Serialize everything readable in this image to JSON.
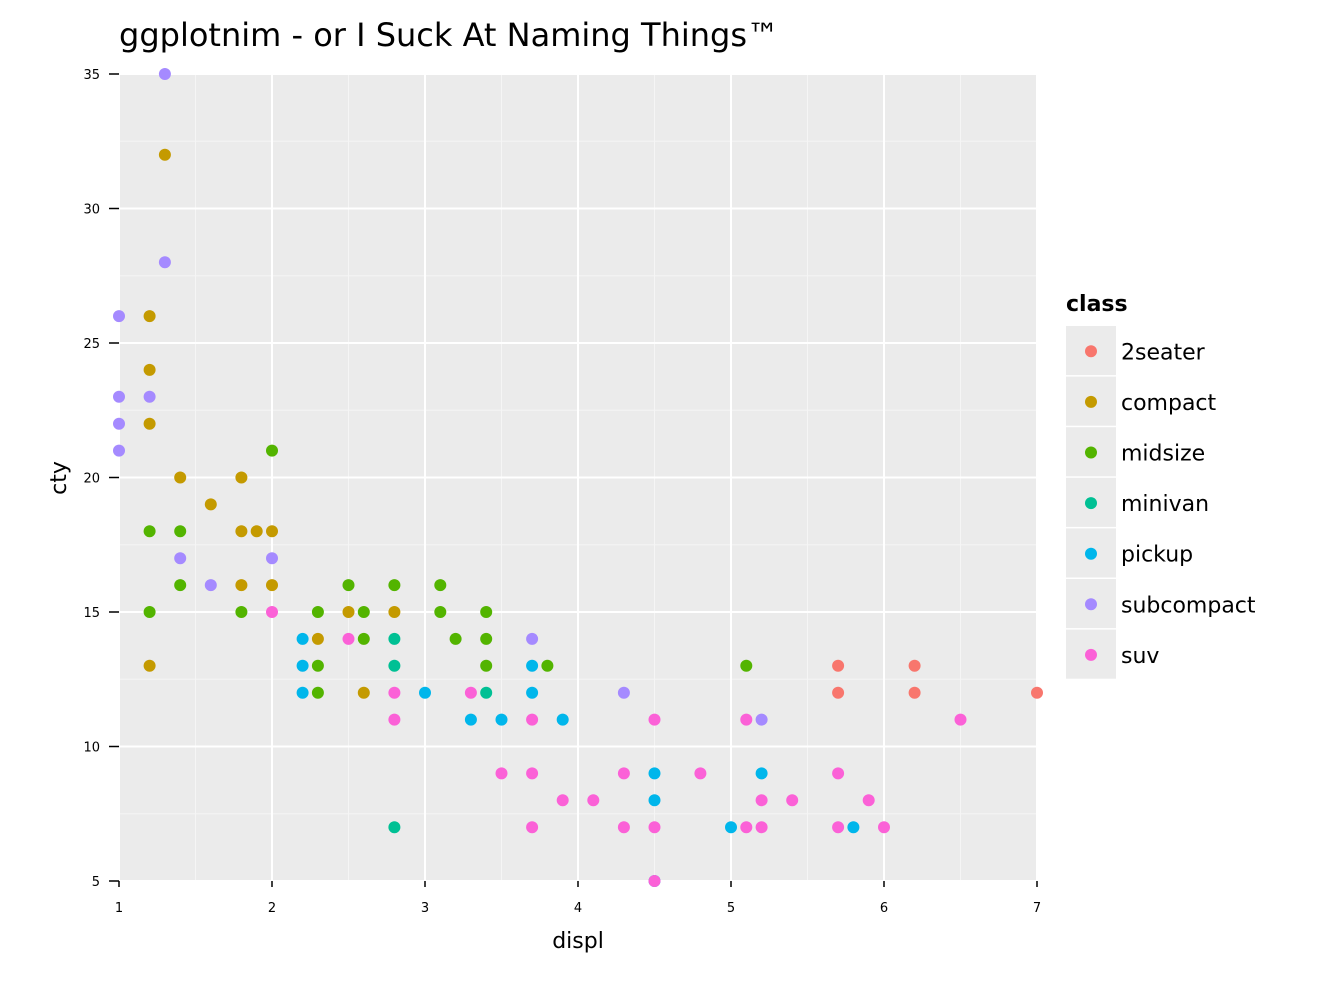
{
  "chart_data": {
    "type": "scatter",
    "title": "ggplotnim - or I Suck At Naming Things™",
    "xlabel": "displ",
    "ylabel": "cty",
    "xlim": [
      1,
      7
    ],
    "ylim": [
      5,
      35
    ],
    "xticks": [
      1,
      2,
      3,
      4,
      5,
      6,
      7
    ],
    "yticks": [
      5,
      10,
      15,
      20,
      25,
      30,
      35
    ],
    "grid": true,
    "legend": {
      "title": "class",
      "position": "right"
    },
    "series": [
      {
        "name": "2seater",
        "color": "#F8766D",
        "points": [
          [
            5.7,
            12
          ],
          [
            5.7,
            13
          ],
          [
            6.2,
            12
          ],
          [
            6.2,
            13
          ],
          [
            7.0,
            12
          ]
        ]
      },
      {
        "name": "compact",
        "color": "#C49A00",
        "points": [
          [
            1.2,
            13
          ],
          [
            1.2,
            22
          ],
          [
            1.2,
            24
          ],
          [
            1.2,
            26
          ],
          [
            1.3,
            32
          ],
          [
            1.4,
            20
          ],
          [
            1.6,
            19
          ],
          [
            1.8,
            16
          ],
          [
            1.8,
            18
          ],
          [
            1.8,
            20
          ],
          [
            1.9,
            18
          ],
          [
            2.0,
            16
          ],
          [
            2.0,
            18
          ],
          [
            2.3,
            14
          ],
          [
            2.5,
            15
          ],
          [
            2.6,
            12
          ],
          [
            2.8,
            15
          ]
        ]
      },
      {
        "name": "midsize",
        "color": "#53B400",
        "points": [
          [
            1.2,
            15
          ],
          [
            1.2,
            18
          ],
          [
            1.4,
            16
          ],
          [
            1.4,
            18
          ],
          [
            1.8,
            15
          ],
          [
            2.0,
            21
          ],
          [
            2.3,
            12
          ],
          [
            2.3,
            13
          ],
          [
            2.3,
            15
          ],
          [
            2.5,
            16
          ],
          [
            2.6,
            14
          ],
          [
            2.6,
            15
          ],
          [
            2.8,
            16
          ],
          [
            3.1,
            15
          ],
          [
            3.1,
            16
          ],
          [
            3.2,
            14
          ],
          [
            3.4,
            13
          ],
          [
            3.4,
            14
          ],
          [
            3.4,
            15
          ],
          [
            3.8,
            13
          ],
          [
            5.1,
            13
          ]
        ]
      },
      {
        "name": "minivan",
        "color": "#00C094",
        "points": [
          [
            2.8,
            7
          ],
          [
            2.8,
            13
          ],
          [
            2.8,
            14
          ],
          [
            3.4,
            12
          ]
        ]
      },
      {
        "name": "pickup",
        "color": "#00B6EB",
        "points": [
          [
            2.2,
            12
          ],
          [
            2.2,
            13
          ],
          [
            2.2,
            14
          ],
          [
            3.0,
            12
          ],
          [
            3.3,
            11
          ],
          [
            3.5,
            11
          ],
          [
            3.7,
            12
          ],
          [
            3.7,
            13
          ],
          [
            3.9,
            11
          ],
          [
            4.5,
            8
          ],
          [
            4.5,
            9
          ],
          [
            4.5,
            5
          ],
          [
            5.0,
            7
          ],
          [
            5.2,
            9
          ],
          [
            5.8,
            7
          ]
        ]
      },
      {
        "name": "subcompact",
        "color": "#A58AFF",
        "points": [
          [
            1.0,
            21
          ],
          [
            1.0,
            22
          ],
          [
            1.0,
            23
          ],
          [
            1.0,
            26
          ],
          [
            1.2,
            23
          ],
          [
            1.3,
            28
          ],
          [
            1.3,
            35
          ],
          [
            1.4,
            17
          ],
          [
            1.6,
            16
          ],
          [
            2.0,
            17
          ],
          [
            3.7,
            14
          ],
          [
            4.3,
            12
          ],
          [
            5.2,
            11
          ]
        ]
      },
      {
        "name": "suv",
        "color": "#FB61D7",
        "points": [
          [
            2.0,
            15
          ],
          [
            2.5,
            14
          ],
          [
            2.8,
            11
          ],
          [
            2.8,
            12
          ],
          [
            3.3,
            12
          ],
          [
            3.5,
            9
          ],
          [
            3.7,
            7
          ],
          [
            3.7,
            9
          ],
          [
            3.7,
            11
          ],
          [
            3.9,
            8
          ],
          [
            4.1,
            8
          ],
          [
            4.3,
            7
          ],
          [
            4.3,
            9
          ],
          [
            4.5,
            7
          ],
          [
            4.5,
            11
          ],
          [
            4.5,
            5
          ],
          [
            4.8,
            9
          ],
          [
            5.1,
            7
          ],
          [
            5.1,
            11
          ],
          [
            5.2,
            7
          ],
          [
            5.2,
            8
          ],
          [
            5.4,
            8
          ],
          [
            5.7,
            7
          ],
          [
            5.7,
            9
          ],
          [
            5.9,
            8
          ],
          [
            6.0,
            7
          ],
          [
            6.5,
            11
          ]
        ]
      }
    ]
  }
}
